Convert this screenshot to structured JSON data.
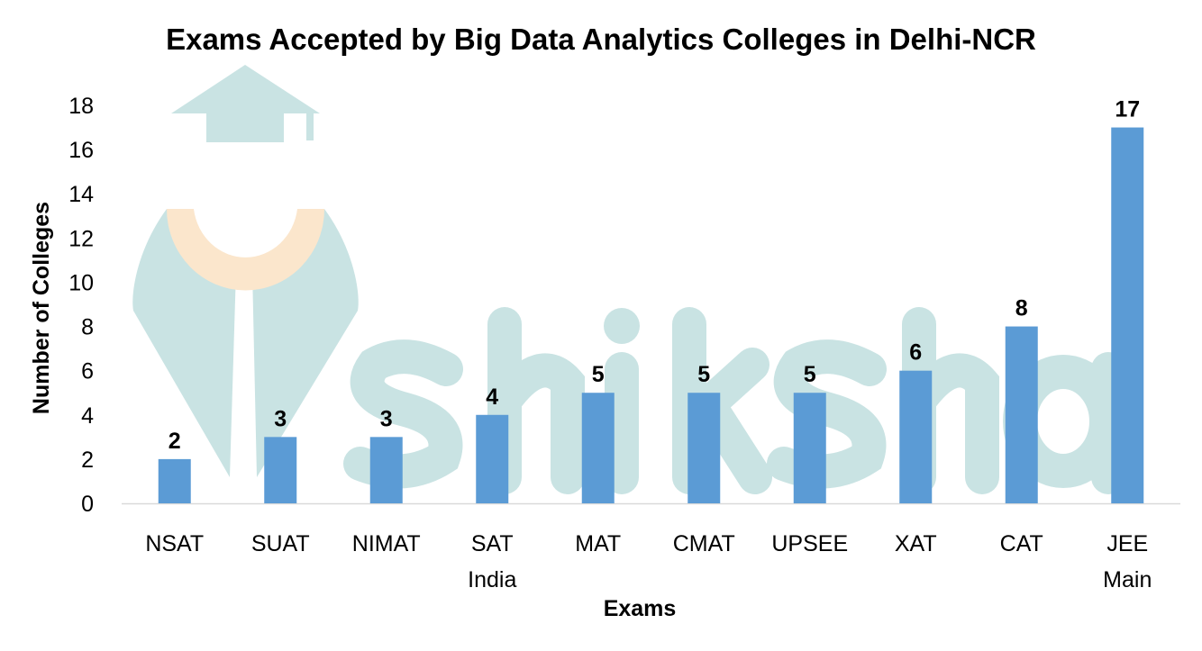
{
  "watermark": {
    "text": "shiksha",
    "color": "#c9e3e3",
    "accent": "#fbe6cc"
  },
  "chart_data": {
    "type": "bar",
    "title": "Exams Accepted by Big Data Analytics Colleges in Delhi-NCR",
    "xlabel": "Exams",
    "ylabel": "Number of Colleges",
    "categories": [
      [
        "NSAT"
      ],
      [
        "SUAT"
      ],
      [
        "NIMAT"
      ],
      [
        "SAT",
        "India"
      ],
      [
        "MAT"
      ],
      [
        "CMAT"
      ],
      [
        "UPSEE"
      ],
      [
        "XAT"
      ],
      [
        "CAT"
      ],
      [
        "JEE",
        "Main"
      ]
    ],
    "values": [
      2,
      3,
      3,
      4,
      5,
      5,
      5,
      6,
      8,
      17
    ],
    "ylim": [
      0,
      18
    ],
    "yticks": [
      0,
      2,
      4,
      6,
      8,
      10,
      12,
      14,
      16,
      18
    ],
    "grid": false,
    "data_labels": true,
    "bar_color": "#5b9bd5"
  }
}
